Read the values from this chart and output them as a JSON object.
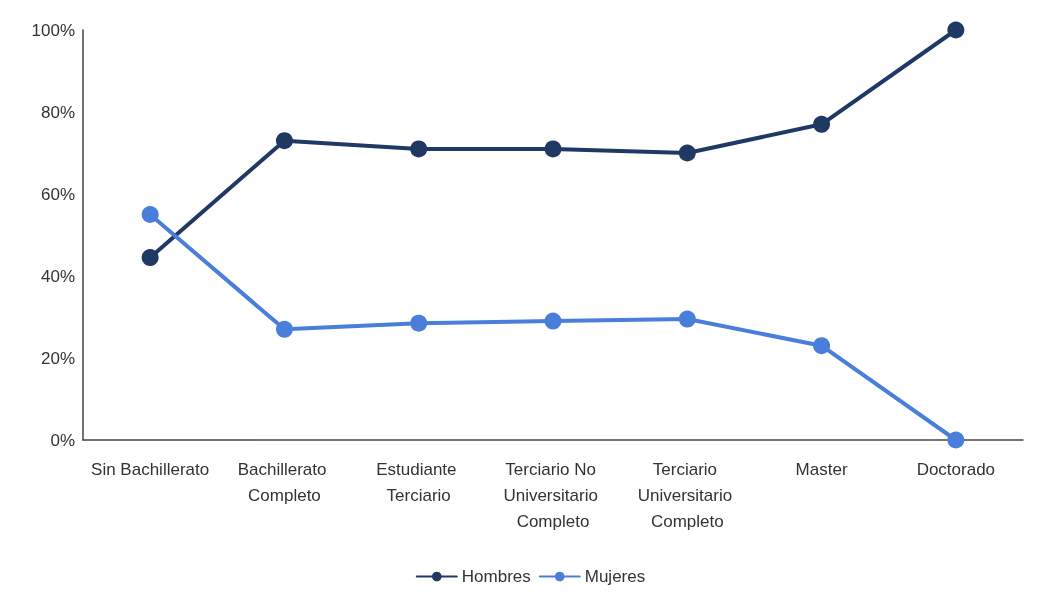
{
  "chart_data": {
    "type": "line",
    "categories": [
      "Sin Bachillerato",
      "Bachillerato Completo",
      "Estudiante Terciario",
      "Terciario No Universitario Completo",
      "Terciario Universitario Completo",
      "Master",
      "Doctorado"
    ],
    "series": [
      {
        "name": "Hombres",
        "color": "#203864",
        "values": [
          44.5,
          73,
          71,
          71,
          70,
          77,
          100
        ]
      },
      {
        "name": "Mujeres",
        "color": "#4a7edb",
        "values": [
          55,
          27,
          28.5,
          29,
          29.5,
          23,
          0
        ]
      }
    ],
    "ylim": [
      0,
      100
    ],
    "yticks": [
      {
        "value": 0,
        "label": "0%"
      },
      {
        "value": 20,
        "label": "20%"
      },
      {
        "value": 40,
        "label": "40%"
      },
      {
        "value": 60,
        "label": "60%"
      },
      {
        "value": 80,
        "label": "80%"
      },
      {
        "value": 100,
        "label": "100%"
      }
    ],
    "grid": false,
    "legend": "bottom",
    "marker": "circle",
    "line_style": "solid"
  }
}
